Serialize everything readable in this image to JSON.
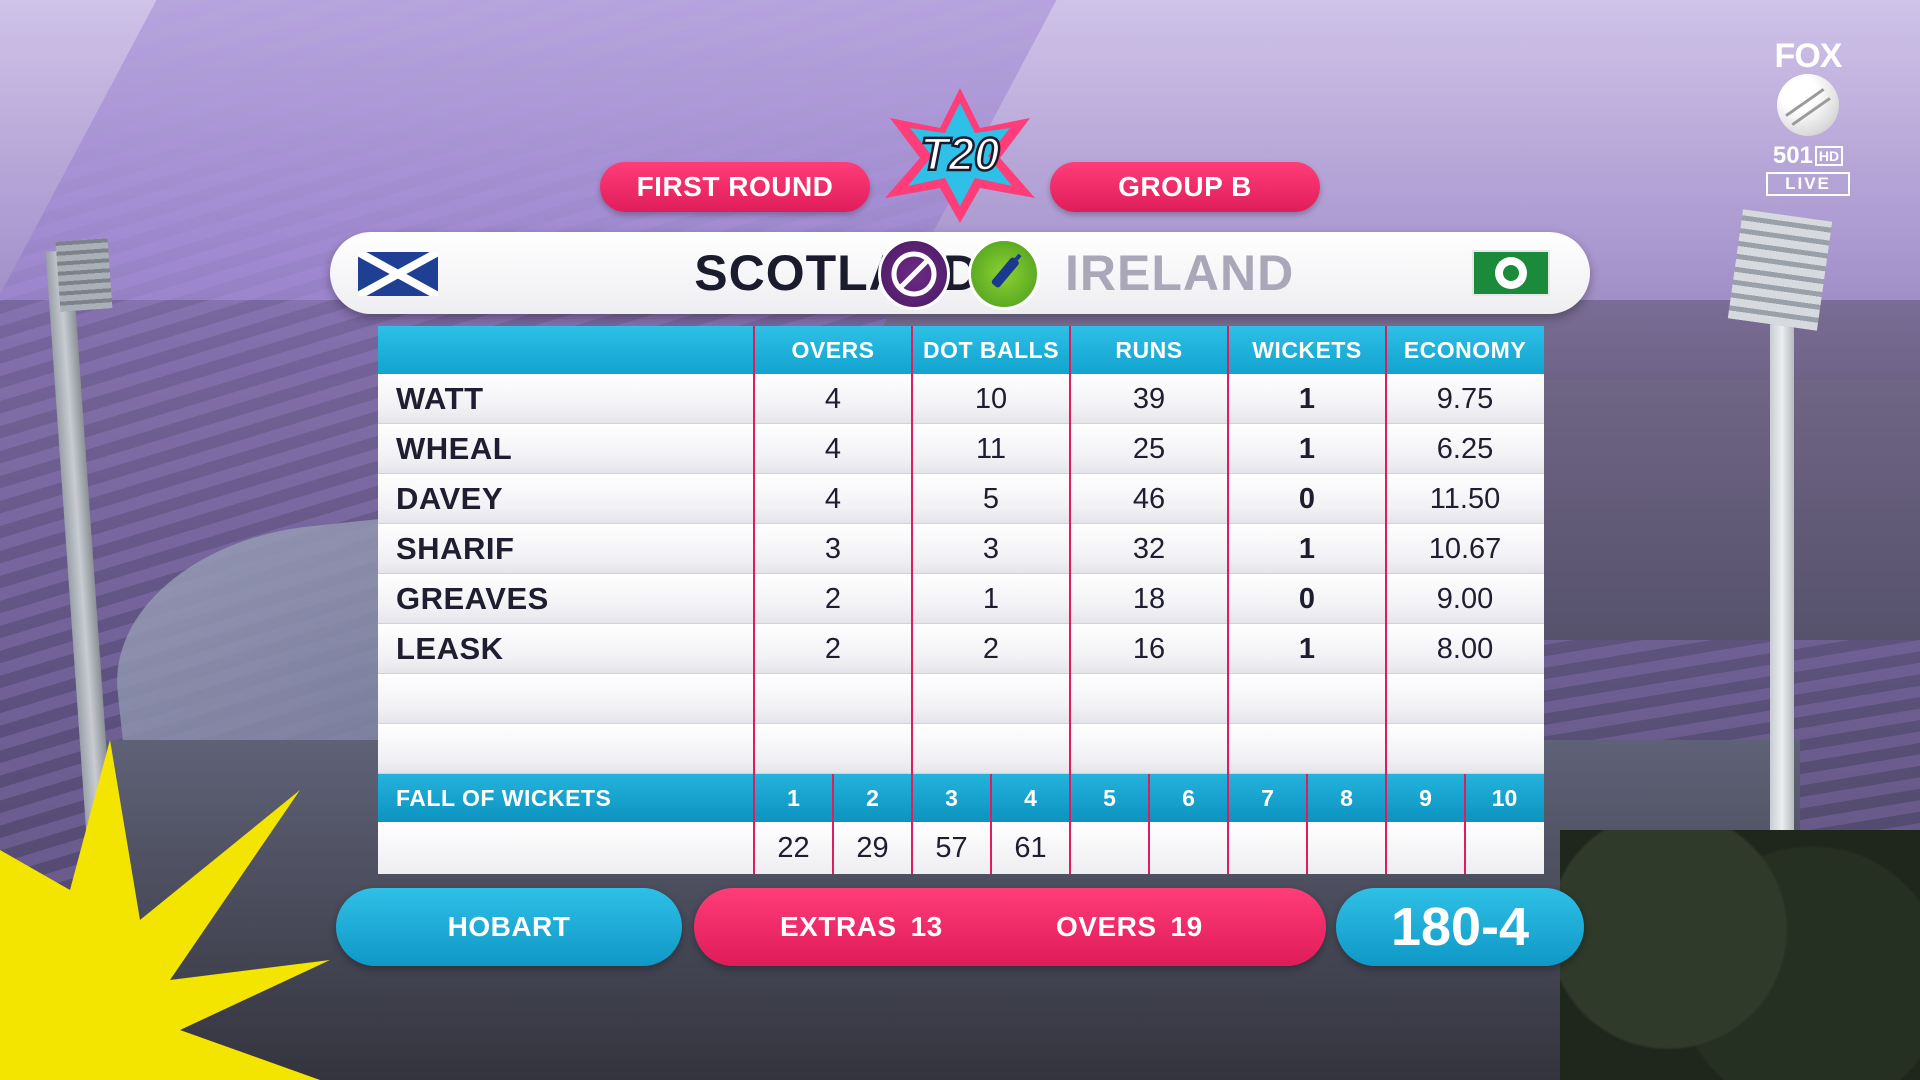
{
  "broadcaster": {
    "brand": "FOX",
    "channel_number": "501",
    "hd_label": "HD",
    "live_label": "LIVE"
  },
  "header": {
    "round_label": "FIRST ROUND",
    "group_label": "GROUP B",
    "tournament_logo_text": "T20"
  },
  "teams": {
    "home": "SCOTLAND",
    "away": "IRELAND"
  },
  "scorecard": {
    "columns": [
      "",
      "OVERS",
      "DOT BALLS",
      "RUNS",
      "WICKETS",
      "ECONOMY"
    ],
    "bowlers": [
      {
        "name": "WATT",
        "overs": "4",
        "dot_balls": "10",
        "runs": "39",
        "wickets": "1",
        "economy": "9.75"
      },
      {
        "name": "WHEAL",
        "overs": "4",
        "dot_balls": "11",
        "runs": "25",
        "wickets": "1",
        "economy": "6.25"
      },
      {
        "name": "DAVEY",
        "overs": "4",
        "dot_balls": "5",
        "runs": "46",
        "wickets": "0",
        "economy": "11.50"
      },
      {
        "name": "SHARIF",
        "overs": "3",
        "dot_balls": "3",
        "runs": "32",
        "wickets": "1",
        "economy": "10.67"
      },
      {
        "name": "GREAVES",
        "overs": "2",
        "dot_balls": "1",
        "runs": "18",
        "wickets": "0",
        "economy": "9.00"
      },
      {
        "name": "LEASK",
        "overs": "2",
        "dot_balls": "2",
        "runs": "16",
        "wickets": "1",
        "economy": "8.00"
      },
      {
        "name": "",
        "overs": "",
        "dot_balls": "",
        "runs": "",
        "wickets": "",
        "economy": ""
      },
      {
        "name": "",
        "overs": "",
        "dot_balls": "",
        "runs": "",
        "wickets": "",
        "economy": ""
      }
    ],
    "fall_of_wickets": {
      "label": "FALL OF WICKETS",
      "numbers": [
        "1",
        "2",
        "3",
        "4",
        "5",
        "6",
        "7",
        "8",
        "9",
        "10"
      ],
      "values": [
        "22",
        "29",
        "57",
        "61",
        "",
        "",
        "",
        "",
        "",
        ""
      ]
    }
  },
  "footer": {
    "venue": "HOBART",
    "extras_label": "EXTRAS",
    "extras_value": "13",
    "overs_label": "OVERS",
    "overs_value": "19",
    "total": "180-4"
  },
  "colors": {
    "accent_pink": "#e01d5c",
    "accent_cyan": "#12a3cf",
    "home_badge": "#4a1a63",
    "away_badge": "#4a9a20"
  }
}
